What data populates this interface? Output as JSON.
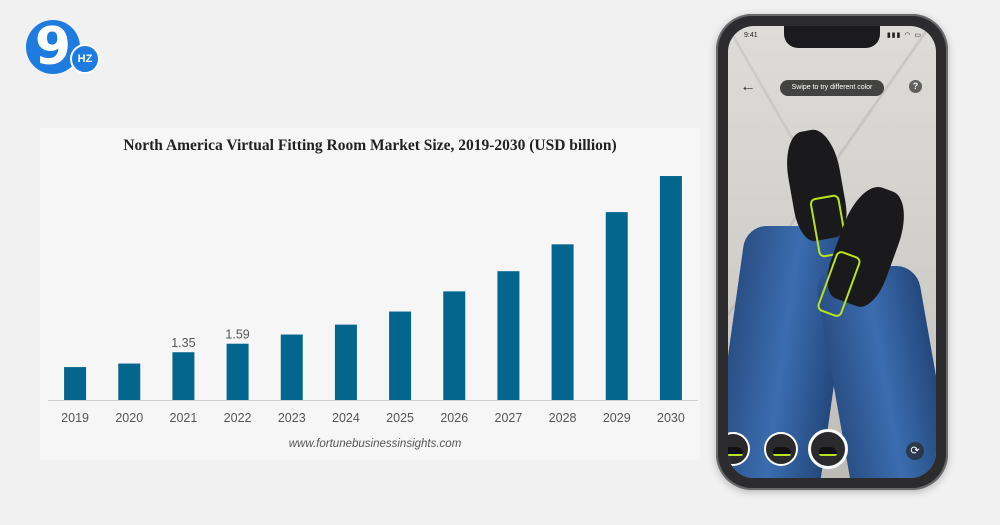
{
  "logo": {
    "main": "9",
    "badge": "HZ"
  },
  "chart_data": {
    "type": "bar",
    "title": "North America Virtual Fitting Room Market Size, 2019-2030 (USD billion)",
    "categories": [
      "2019",
      "2020",
      "2021",
      "2022",
      "2023",
      "2024",
      "2025",
      "2026",
      "2027",
      "2028",
      "2029",
      "2030"
    ],
    "values": [
      0.93,
      1.03,
      1.35,
      1.59,
      1.85,
      2.13,
      2.5,
      3.07,
      3.64,
      4.4,
      5.31,
      6.33
    ],
    "data_labels": [
      "",
      "",
      "1.35",
      "1.59",
      "",
      "",
      "",
      "",
      "",
      "",
      "",
      ""
    ],
    "xlabel": "",
    "ylabel": "",
    "ylim": [
      0,
      6.5
    ],
    "grid": false,
    "colors": {
      "bar": "#05668d",
      "axis": "#cfcfcf"
    }
  },
  "source": "www.fortunebusinessinsights.com",
  "phone": {
    "time": "9:41",
    "status_icons": "▮▮▮ ◠ ▭",
    "back_icon": "←",
    "hint": "Swipe to try different color",
    "help_icon": "?",
    "rotate_icon": "⟳"
  }
}
